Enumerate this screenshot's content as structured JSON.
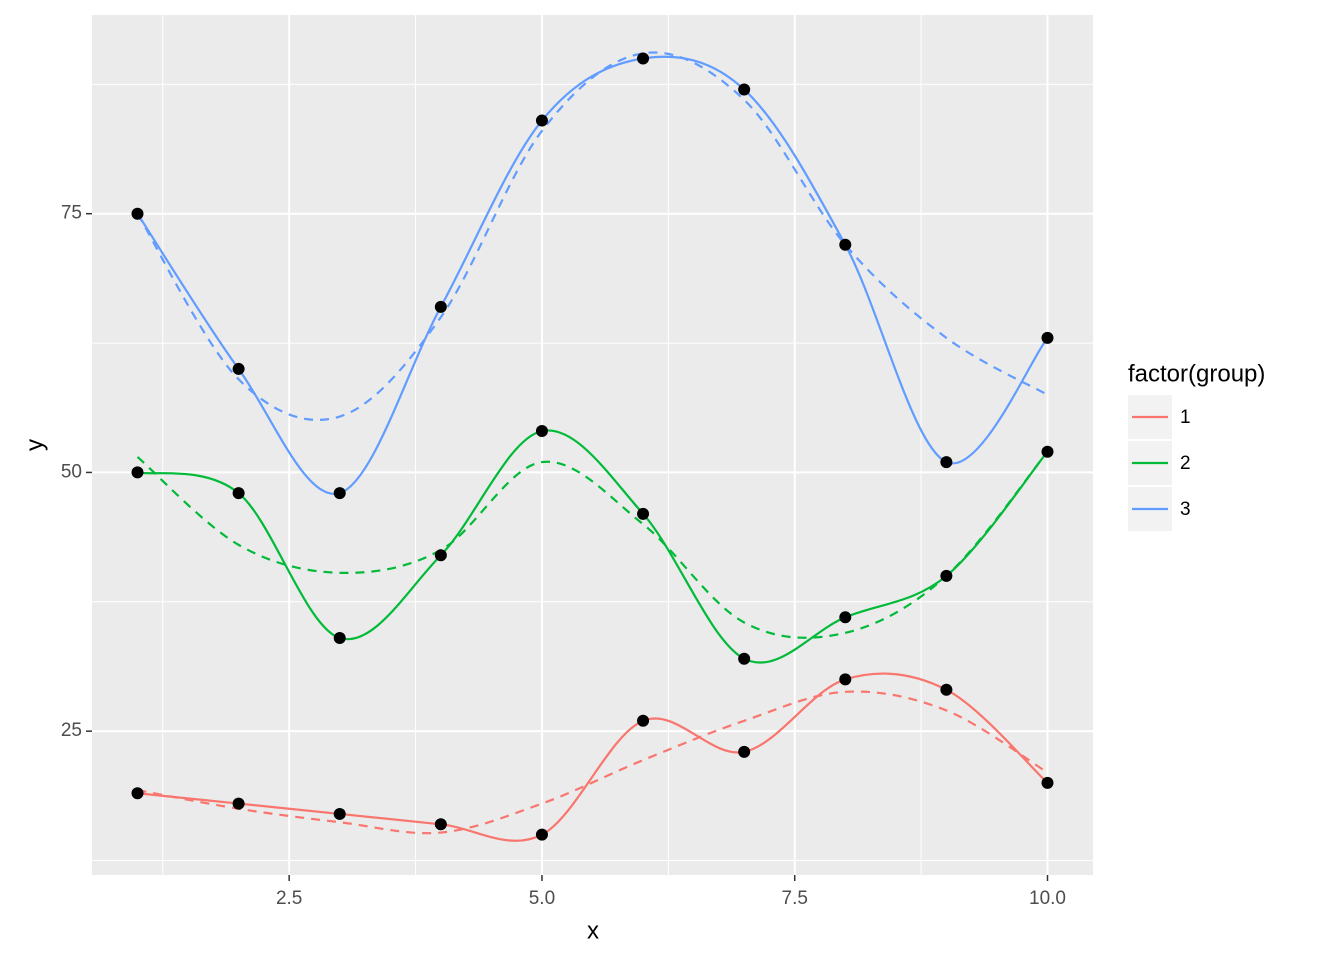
{
  "chart_data": {
    "type": "line",
    "x_label": "x",
    "y_label": "y",
    "legend_title": "factor(group)",
    "x": [
      1,
      2,
      3,
      4,
      5,
      6,
      7,
      8,
      9,
      10
    ],
    "series": [
      {
        "name": "1",
        "color": "#F8766D",
        "values": [
          19,
          18,
          17,
          16,
          15,
          26,
          23,
          30,
          29,
          20
        ],
        "smooth_values": [
          19.3,
          17.5,
          16.2,
          15.2,
          18,
          22.2,
          26,
          28.8,
          27,
          21
        ]
      },
      {
        "name": "2",
        "color": "#00BA38",
        "values": [
          50,
          48,
          34,
          42,
          54,
          46,
          32,
          36,
          40,
          52
        ],
        "smooth_values": [
          51.5,
          43,
          40.3,
          42.5,
          51,
          45,
          35.5,
          34.5,
          40,
          52
        ]
      },
      {
        "name": "3",
        "color": "#619CFF",
        "values": [
          75,
          60,
          48,
          66,
          84,
          90,
          87,
          72,
          51,
          63
        ],
        "smooth_values": [
          75,
          59,
          55.4,
          65,
          83,
          90.5,
          86,
          72,
          63,
          57.5
        ]
      }
    ],
    "point_color": "#000000",
    "xlim": [
      0.55,
      10.45
    ],
    "ylim": [
      11.1,
      94.2
    ],
    "xticks": [
      {
        "value": 2.5,
        "label": "2.5"
      },
      {
        "value": 5,
        "label": "5.0"
      },
      {
        "value": 7.5,
        "label": "7.5"
      },
      {
        "value": 10,
        "label": "10.0"
      }
    ],
    "yticks": [
      25,
      50,
      75
    ],
    "xminor": [
      1.25,
      3.75,
      6.25,
      8.75
    ],
    "yminor": [
      12.5,
      37.5,
      62.5,
      87.5
    ],
    "grid": true,
    "legend_position": "right"
  }
}
